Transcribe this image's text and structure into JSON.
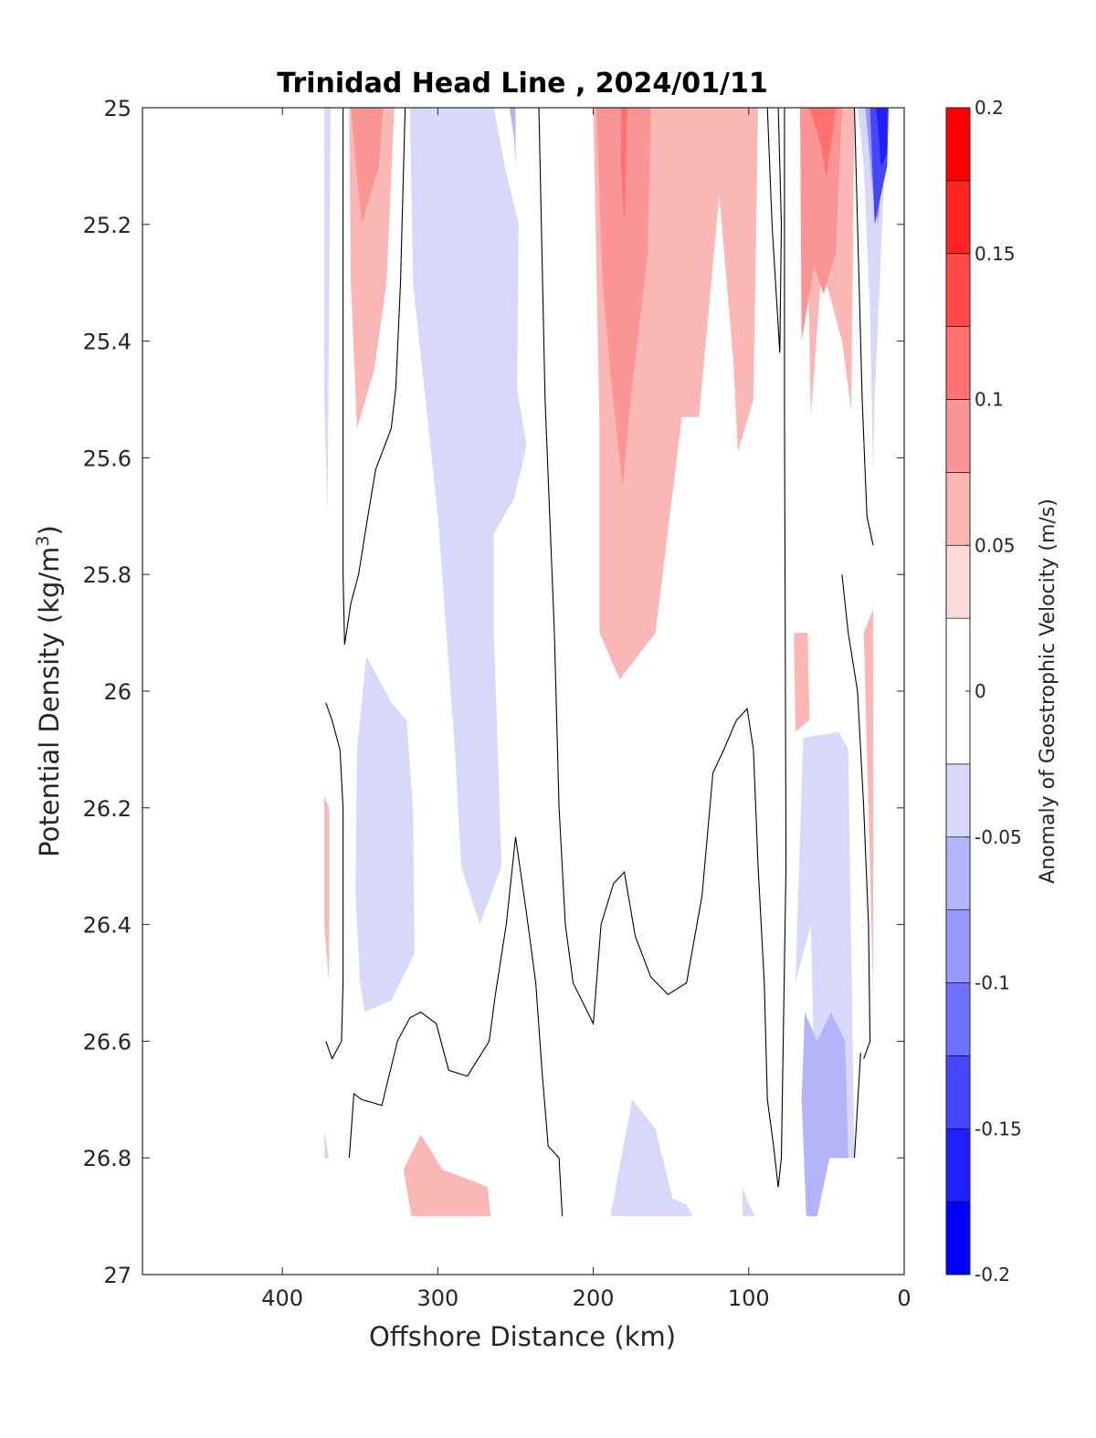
{
  "chart_data": {
    "type": "contour",
    "title": "Trinidad Head Line , 2024/01/11",
    "xlabel": "Offshore Distance (km)",
    "ylabel_main": "Potential Density (kg/m",
    "ylabel_sup": "3",
    "ylabel_end": ")",
    "xlim": [
      490,
      0
    ],
    "x_reversed": true,
    "ylim": [
      25,
      27
    ],
    "y_reversed": true,
    "xticks": [
      400,
      300,
      200,
      100,
      0
    ],
    "yticks": [
      25,
      25.2,
      25.4,
      25.6,
      25.8,
      26,
      26.2,
      26.4,
      26.6,
      26.8,
      27
    ],
    "colorbar": {
      "label": "Anomaly of Geostrophic Velocity (m/s)",
      "range": [
        -0.2,
        0.2
      ],
      "ticks": [
        -0.2,
        -0.15,
        -0.1,
        -0.05,
        0,
        0.05,
        0.1,
        0.15,
        0.2
      ],
      "levels": [
        {
          "lo": -0.2,
          "hi": -0.175,
          "color": "#0000ff"
        },
        {
          "lo": -0.175,
          "hi": -0.15,
          "color": "#2020ff"
        },
        {
          "lo": -0.15,
          "hi": -0.125,
          "color": "#4646ff"
        },
        {
          "lo": -0.125,
          "hi": -0.1,
          "color": "#7070ff"
        },
        {
          "lo": -0.1,
          "hi": -0.075,
          "color": "#9898ff"
        },
        {
          "lo": -0.075,
          "hi": -0.05,
          "color": "#b4b4fb"
        },
        {
          "lo": -0.05,
          "hi": -0.025,
          "color": "#d8d8fa"
        },
        {
          "lo": -0.025,
          "hi": 0.025,
          "color": "#ffffff"
        },
        {
          "lo": 0.025,
          "hi": 0.05,
          "color": "#fcdada"
        },
        {
          "lo": 0.05,
          "hi": 0.075,
          "color": "#fbb6b6"
        },
        {
          "lo": 0.075,
          "hi": 0.1,
          "color": "#fb9494"
        },
        {
          "lo": 0.1,
          "hi": 0.125,
          "color": "#ff7070"
        },
        {
          "lo": 0.125,
          "hi": 0.15,
          "color": "#ff4848"
        },
        {
          "lo": 0.15,
          "hi": 0.175,
          "color": "#ff2424"
        },
        {
          "lo": 0.175,
          "hi": 0.2,
          "color": "#ff0000"
        }
      ]
    },
    "filled_regions": [
      {
        "name": "blue-band-370km",
        "level": -0.05,
        "points": [
          [
            373,
            25.0
          ],
          [
            369,
            25.0
          ],
          [
            371,
            25.7
          ],
          [
            373,
            25.5
          ]
        ]
      },
      {
        "name": "red-core-345km",
        "level": 0.05,
        "points": [
          [
            357,
            25.0
          ],
          [
            328,
            25.0
          ],
          [
            333,
            25.3
          ],
          [
            341,
            25.45
          ],
          [
            352,
            25.55
          ],
          [
            356,
            25.3
          ]
        ]
      },
      {
        "name": "red-inner-345km",
        "level": 0.075,
        "points": [
          [
            356,
            25.0
          ],
          [
            335,
            25.0
          ],
          [
            338,
            25.1
          ],
          [
            349,
            25.2
          ]
        ]
      },
      {
        "name": "blue-region-300km",
        "level": -0.05,
        "points": [
          [
            318,
            25.0
          ],
          [
            264,
            25.0
          ],
          [
            257,
            25.1
          ],
          [
            248,
            25.2
          ],
          [
            249,
            25.48
          ],
          [
            243,
            25.58
          ],
          [
            251,
            25.67
          ],
          [
            264,
            25.73
          ],
          [
            264,
            25.9
          ],
          [
            259,
            26.3
          ],
          [
            273,
            26.4
          ],
          [
            285,
            26.3
          ],
          [
            289,
            26.1
          ],
          [
            300,
            25.7
          ],
          [
            316,
            25.3
          ]
        ]
      },
      {
        "name": "blue-spot-250km",
        "level": -0.075,
        "points": [
          [
            254,
            25.0
          ],
          [
            250,
            25.0
          ],
          [
            250,
            25.1
          ],
          [
            251,
            25.05
          ]
        ]
      },
      {
        "name": "red-region-190km",
        "level": 0.05,
        "points": [
          [
            200,
            25.0
          ],
          [
            94,
            25.0
          ],
          [
            97,
            25.5
          ],
          [
            107,
            25.59
          ],
          [
            110,
            25.43
          ],
          [
            119,
            25.15
          ],
          [
            132,
            25.53
          ],
          [
            143,
            25.53
          ],
          [
            160,
            25.9
          ],
          [
            183,
            25.98
          ],
          [
            196,
            25.9
          ],
          [
            196,
            25.55
          ]
        ]
      },
      {
        "name": "red-inner-180km",
        "level": 0.075,
        "points": [
          [
            198,
            25.0
          ],
          [
            163,
            25.0
          ],
          [
            165,
            25.25
          ],
          [
            176,
            25.5
          ],
          [
            181,
            25.65
          ],
          [
            188,
            25.48
          ],
          [
            194,
            25.3
          ]
        ]
      },
      {
        "name": "red-core-180km",
        "level": 0.1,
        "points": [
          [
            182,
            25.0
          ],
          [
            178,
            25.0
          ],
          [
            180,
            25.2
          ],
          [
            182,
            25.1
          ]
        ]
      },
      {
        "name": "red-region-55km",
        "level": 0.05,
        "points": [
          [
            69,
            25.0
          ],
          [
            32,
            25.0
          ],
          [
            34,
            25.52
          ],
          [
            40,
            25.4
          ],
          [
            53,
            25.27
          ],
          [
            60,
            25.53
          ],
          [
            64,
            25.0
          ]
        ]
      },
      {
        "name": "red-inner-55km",
        "level": 0.075,
        "points": [
          [
            67,
            25.0
          ],
          [
            40,
            25.0
          ],
          [
            44,
            25.25
          ],
          [
            52,
            25.32
          ],
          [
            58,
            25.27
          ],
          [
            66,
            25.4
          ]
        ]
      },
      {
        "name": "red-core-55km",
        "level": 0.1,
        "points": [
          [
            61,
            25.0
          ],
          [
            44,
            25.0
          ],
          [
            50,
            25.12
          ],
          [
            54,
            25.06
          ]
        ]
      },
      {
        "name": "blue-edge-20km",
        "level": -0.05,
        "points": [
          [
            30,
            25.0
          ],
          [
            11,
            25.0
          ],
          [
            19,
            25.5
          ],
          [
            20,
            25.63
          ],
          [
            22,
            25.35
          ],
          [
            26,
            25.1
          ]
        ]
      },
      {
        "name": "blue-edge-18km-1",
        "level": -0.1,
        "points": [
          [
            25,
            25.0
          ],
          [
            11,
            25.0
          ],
          [
            17,
            25.2
          ],
          [
            20,
            25.15
          ]
        ]
      },
      {
        "name": "blue-edge-18km-2",
        "level": -0.15,
        "points": [
          [
            22,
            25.0
          ],
          [
            10,
            25.0
          ],
          [
            11,
            25.1
          ],
          [
            19,
            25.2
          ]
        ]
      },
      {
        "name": "blue-edge-15km",
        "level": -0.175,
        "points": [
          [
            18,
            25.0
          ],
          [
            11,
            25.0
          ],
          [
            11,
            25.08
          ],
          [
            15,
            25.1
          ]
        ]
      },
      {
        "name": "red-edge-60km",
        "level": 0.05,
        "points": [
          [
            71,
            25.9
          ],
          [
            62,
            25.9
          ],
          [
            61,
            26.05
          ],
          [
            70,
            26.07
          ]
        ]
      },
      {
        "name": "red-edge-20km",
        "level": 0.05,
        "points": [
          [
            26,
            25.9
          ],
          [
            20,
            25.86
          ],
          [
            20,
            26.52
          ],
          [
            22,
            26.3
          ]
        ]
      },
      {
        "name": "red-sliver-370km",
        "level": 0.05,
        "points": [
          [
            373,
            26.18
          ],
          [
            370,
            26.2
          ],
          [
            370,
            26.5
          ],
          [
            373,
            26.4
          ]
        ]
      },
      {
        "name": "blue-mid-320km",
        "level": -0.05,
        "points": [
          [
            346,
            25.94
          ],
          [
            330,
            26.02
          ],
          [
            320,
            26.05
          ],
          [
            316,
            26.2
          ],
          [
            315,
            26.45
          ],
          [
            330,
            26.53
          ],
          [
            347,
            26.55
          ],
          [
            350,
            26.5
          ],
          [
            353,
            26.35
          ],
          [
            352,
            26.1
          ]
        ]
      },
      {
        "name": "blue-mid-40km",
        "level": -0.05,
        "points": [
          [
            65,
            26.08
          ],
          [
            42,
            26.07
          ],
          [
            36,
            26.1
          ],
          [
            32,
            26.8
          ],
          [
            48,
            26.8
          ],
          [
            56,
            26.9
          ],
          [
            60,
            26.4
          ],
          [
            70,
            26.5
          ]
        ]
      },
      {
        "name": "blue-deep-45km",
        "level": -0.075,
        "points": [
          [
            64,
            26.55
          ],
          [
            56,
            26.6
          ],
          [
            47,
            26.55
          ],
          [
            38,
            26.6
          ],
          [
            36,
            26.8
          ],
          [
            48,
            26.8
          ],
          [
            56,
            26.9
          ],
          [
            63,
            26.9
          ],
          [
            66,
            26.7
          ]
        ]
      },
      {
        "name": "blue-left-370km",
        "level": -0.05,
        "points": [
          [
            373,
            26.75
          ],
          [
            370,
            26.8
          ],
          [
            373,
            26.8
          ]
        ]
      },
      {
        "name": "red-deep-300km",
        "level": 0.05,
        "points": [
          [
            311,
            26.76
          ],
          [
            322,
            26.82
          ],
          [
            317,
            26.9
          ],
          [
            266,
            26.9
          ],
          [
            268,
            26.85
          ],
          [
            277,
            26.84
          ],
          [
            297,
            26.82
          ]
        ]
      },
      {
        "name": "blue-deep-180km",
        "level": -0.05,
        "points": [
          [
            189,
            26.9
          ],
          [
            182,
            26.8
          ],
          [
            175,
            26.7
          ],
          [
            160,
            26.75
          ],
          [
            149,
            26.87
          ],
          [
            140,
            26.88
          ],
          [
            136,
            26.9
          ]
        ]
      },
      {
        "name": "blue-deep-100km",
        "level": -0.05,
        "points": [
          [
            104,
            26.85
          ],
          [
            100,
            26.88
          ],
          [
            96,
            26.9
          ],
          [
            104,
            26.9
          ]
        ]
      }
    ],
    "contour_lines": [
      {
        "level": 0,
        "points": [
          [
            361,
            25.0
          ],
          [
            361,
            25.2
          ],
          [
            361,
            25.8
          ],
          [
            360,
            25.92
          ],
          [
            356,
            25.85
          ],
          [
            351,
            25.8
          ],
          [
            345,
            25.7
          ],
          [
            340,
            25.62
          ],
          [
            330,
            25.55
          ],
          [
            327,
            25.48
          ],
          [
            324,
            25.3
          ],
          [
            321,
            25.0
          ]
        ]
      },
      {
        "level": 0,
        "points": [
          [
            235,
            25.0
          ],
          [
            231,
            25.5
          ],
          [
            225,
            25.9
          ],
          [
            222,
            26.2
          ],
          [
            218,
            26.4
          ],
          [
            213,
            26.5
          ],
          [
            200,
            26.57
          ],
          [
            195,
            26.4
          ],
          [
            187,
            26.33
          ],
          [
            180,
            26.31
          ],
          [
            173,
            26.42
          ],
          [
            163,
            26.49
          ],
          [
            152,
            26.52
          ],
          [
            140,
            26.5
          ],
          [
            130,
            26.35
          ],
          [
            123,
            26.14
          ],
          [
            116,
            26.1
          ],
          [
            108,
            26.05
          ],
          [
            101,
            26.03
          ],
          [
            97,
            26.1
          ],
          [
            94,
            26.3
          ],
          [
            90,
            26.5
          ],
          [
            88,
            26.7
          ],
          [
            84,
            26.78
          ],
          [
            81,
            26.85
          ],
          [
            79,
            26.8
          ],
          [
            76,
            26.3
          ],
          [
            77,
            25.5
          ],
          [
            77,
            25.0
          ]
        ]
      },
      {
        "level": 0,
        "points": [
          [
            88,
            25.0
          ],
          [
            85,
            25.2
          ],
          [
            80,
            25.42
          ],
          [
            79,
            25.2
          ],
          [
            81,
            25.0
          ]
        ]
      },
      {
        "level": 0,
        "points": [
          [
            32,
            25.0
          ],
          [
            30,
            25.2
          ],
          [
            27,
            25.5
          ],
          [
            24,
            25.7
          ],
          [
            20,
            25.75
          ]
        ]
      },
      {
        "level": 0,
        "points": [
          [
            372,
            26.02
          ],
          [
            368,
            26.05
          ],
          [
            363,
            26.1
          ],
          [
            361,
            26.2
          ],
          [
            361,
            26.5
          ],
          [
            362,
            26.6
          ],
          [
            368,
            26.63
          ],
          [
            372,
            26.6
          ]
        ]
      },
      {
        "level": 0,
        "points": [
          [
            357,
            26.8
          ],
          [
            354,
            26.69
          ],
          [
            349,
            26.7
          ],
          [
            336,
            26.71
          ],
          [
            326,
            26.6
          ],
          [
            318,
            26.56
          ],
          [
            311,
            26.55
          ],
          [
            301,
            26.57
          ],
          [
            293,
            26.65
          ],
          [
            281,
            26.66
          ],
          [
            274,
            26.63
          ],
          [
            267,
            26.6
          ],
          [
            263,
            26.52
          ],
          [
            256,
            26.4
          ],
          [
            250,
            26.25
          ],
          [
            243,
            26.38
          ],
          [
            237,
            26.5
          ],
          [
            233,
            26.65
          ],
          [
            229,
            26.78
          ],
          [
            222,
            26.8
          ],
          [
            220,
            26.9
          ]
        ]
      },
      {
        "level": 0,
        "points": [
          [
            32,
            26.8
          ],
          [
            28,
            26.62
          ]
        ]
      },
      {
        "level": 0,
        "points": [
          [
            40,
            25.8
          ],
          [
            36,
            25.9
          ],
          [
            30,
            26.0
          ],
          [
            26,
            26.2
          ],
          [
            23,
            26.4
          ],
          [
            22,
            26.6
          ],
          [
            26,
            26.63
          ]
        ]
      }
    ]
  }
}
